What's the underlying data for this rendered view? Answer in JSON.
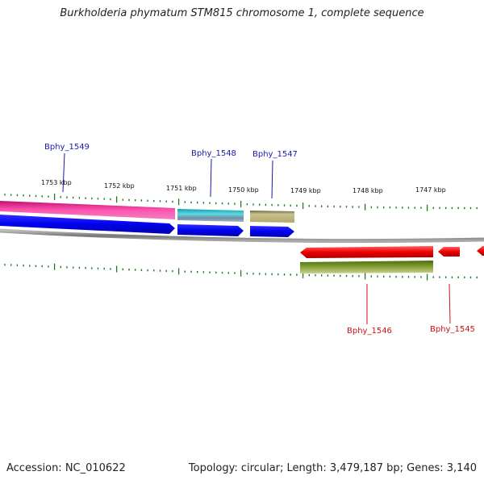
{
  "title": "Burkholderia phymatum STM815 chromosome 1, complete sequence",
  "footer": {
    "accession": "Accession: NC_010622",
    "topology": "Topology: circular; Length: 3,479,187 bp; Genes: 3,140"
  },
  "ruler_labels": [
    "1753 kbp",
    "1752 kbp",
    "1751 kbp",
    "1750 kbp",
    "1749 kbp",
    "1748 kbp",
    "1747 kbp"
  ],
  "genes": [
    {
      "name": "Bphy_1549",
      "color": "#1a1aa8",
      "strand": "forward"
    },
    {
      "name": "Bphy_1548",
      "color": "#1a1aa8",
      "strand": "forward"
    },
    {
      "name": "Bphy_1547",
      "color": "#1a1aa8",
      "strand": "forward"
    },
    {
      "name": "Bphy_1546",
      "color": "#cc1111",
      "strand": "reverse"
    },
    {
      "name": "Bphy_1545",
      "color": "#cc1111",
      "strand": "reverse"
    }
  ],
  "colors": {
    "forward_cds": "#0000ee",
    "reverse_cds": "#ee0000",
    "pink_feature": "#ee3aa0",
    "cyan_feature": "#22bbcc",
    "khaki_feature": "#b8b070",
    "olive_feature": "#6b8a1e",
    "backbone": "#888888",
    "tick": "#1f7a1f"
  }
}
